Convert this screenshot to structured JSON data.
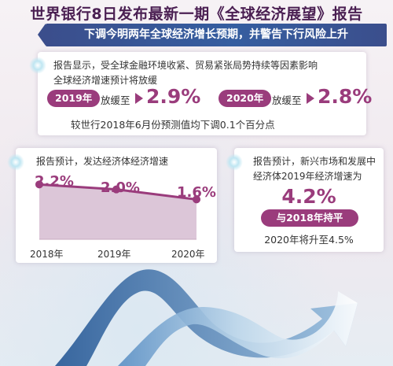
{
  "title": "世界银行8日发布最新一期《全球经济展望》报告",
  "subtitle": "下调今明两年全球经济增长预期，并警告下行风险上升",
  "global": {
    "intro_line1": "报告显示，受全球金融环境收紧、贸易紧张局势持续等因素影响",
    "intro_line2": "全球经济增速预计将放缓",
    "year_2019": "2019年",
    "year_2020": "2020年",
    "slow_label": "放缓至",
    "value_2019": "2.9%",
    "value_2020": "2.8%",
    "note": "较世行2018年6月份预测值均下调0.1个百分点"
  },
  "advanced": {
    "heading": "报告预计，发达经济体经济增速",
    "labels": [
      "2.2%",
      "2.0%",
      "1.6%"
    ],
    "years": [
      "2018年",
      "2019年",
      "2020年"
    ]
  },
  "emerging": {
    "heading": "报告预计，新兴市场和发展中经济体2019年经济增速为",
    "value": "4.2%",
    "pill": "与2018年持平",
    "note": "2020年将升至4.5%"
  },
  "chart_data": {
    "type": "area",
    "title": "报告预计，发达经济体经济增速",
    "categories": [
      "2018年",
      "2019年",
      "2020年"
    ],
    "values": [
      2.2,
      2.0,
      1.6
    ],
    "data_labels": [
      "2.2%",
      "2.0%",
      "1.6%"
    ],
    "ylim": [
      0,
      2.4
    ]
  },
  "colors": {
    "accent": "#9a3c7c",
    "banner": "#3b4e8c",
    "title": "#4a1f52"
  }
}
